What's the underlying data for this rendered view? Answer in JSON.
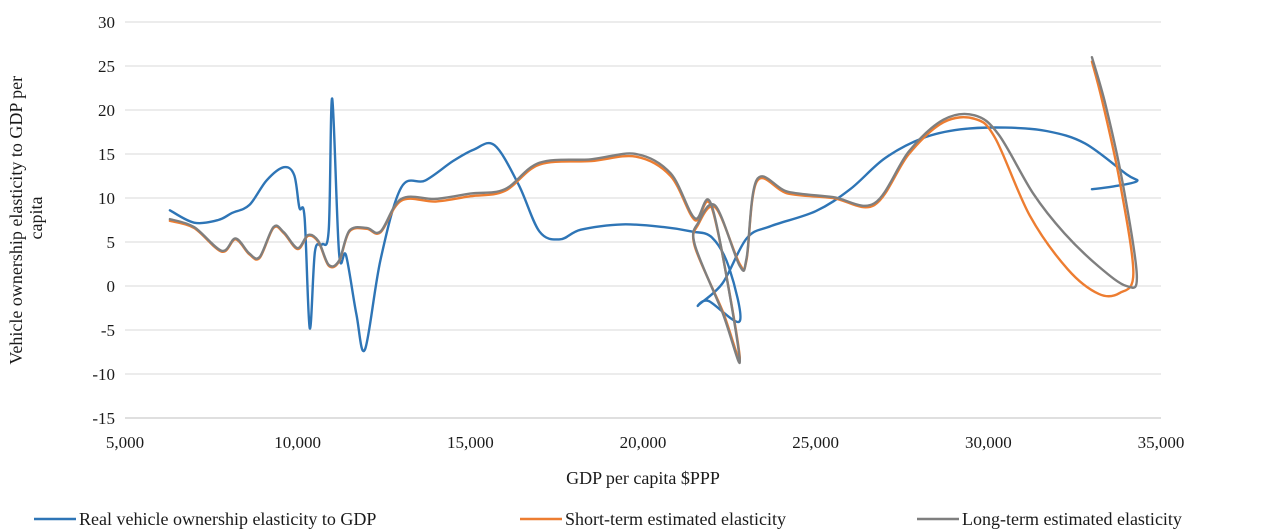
{
  "chart_data": {
    "type": "line",
    "title": "",
    "xlabel": "GDP per capita $PPP",
    "ylabel": "Vehicle ownership elasticity to GDP per capita",
    "ylabel_lines": [
      "Vehicle ownership elasticity to GDP per",
      "capita"
    ],
    "xlim": [
      5000,
      35000
    ],
    "ylim": [
      -15,
      30
    ],
    "x_ticks": [
      5000,
      10000,
      15000,
      20000,
      25000,
      30000,
      35000
    ],
    "x_tick_labels": [
      "5,000",
      "10,000",
      "15,000",
      "20,000",
      "25,000",
      "30,000",
      "35,000"
    ],
    "y_ticks": [
      -15,
      -10,
      -5,
      0,
      5,
      10,
      15,
      20,
      25,
      30
    ],
    "y_tick_labels": [
      "-15",
      "-10",
      "-5",
      "0",
      "5",
      "10",
      "15",
      "20",
      "25",
      "30"
    ],
    "grid": "horizontal",
    "legend_position": "bottom",
    "series": [
      {
        "name": "Real vehicle ownership elasticity to GDP",
        "color": "#2E75B6",
        "points": [
          [
            6300,
            8.6
          ],
          [
            7000,
            7.2
          ],
          [
            7700,
            7.5
          ],
          [
            8100,
            8.3
          ],
          [
            8600,
            9.2
          ],
          [
            9100,
            12.0
          ],
          [
            9600,
            13.5
          ],
          [
            9900,
            12.6
          ],
          [
            10050,
            8.9
          ],
          [
            10200,
            7.8
          ],
          [
            10350,
            -4.8
          ],
          [
            10500,
            3.9
          ],
          [
            10700,
            4.7
          ],
          [
            10900,
            6.4
          ],
          [
            11000,
            21.3
          ],
          [
            11200,
            3.7
          ],
          [
            11400,
            3.5
          ],
          [
            11700,
            -3.2
          ],
          [
            11950,
            -7.2
          ],
          [
            12400,
            3.0
          ],
          [
            13000,
            11.2
          ],
          [
            13700,
            12.0
          ],
          [
            14500,
            14.2
          ],
          [
            15100,
            15.5
          ],
          [
            15700,
            16.0
          ],
          [
            16400,
            11.5
          ],
          [
            17000,
            6.2
          ],
          [
            17600,
            5.3
          ],
          [
            18200,
            6.4
          ],
          [
            19400,
            7.0
          ],
          [
            20600,
            6.7
          ],
          [
            21400,
            6.2
          ],
          [
            22000,
            5.5
          ],
          [
            22500,
            2.0
          ],
          [
            22800,
            -4.0
          ],
          [
            21900,
            -1.7
          ],
          [
            21600,
            -2.2
          ],
          [
            22300,
            0.3
          ],
          [
            23000,
            5.4
          ],
          [
            23700,
            6.8
          ],
          [
            25000,
            8.5
          ],
          [
            26000,
            11.0
          ],
          [
            27000,
            14.5
          ],
          [
            28100,
            16.8
          ],
          [
            29200,
            17.8
          ],
          [
            30500,
            18.0
          ],
          [
            31700,
            17.6
          ],
          [
            32800,
            16.2
          ],
          [
            34000,
            12.7
          ],
          [
            34300,
            11.9
          ],
          [
            33600,
            11.3
          ],
          [
            33000,
            11.0
          ]
        ]
      },
      {
        "name": "Short-term estimated elasticity",
        "color": "#ED7D31",
        "points": [
          [
            6300,
            7.4
          ],
          [
            7000,
            6.6
          ],
          [
            7800,
            3.9
          ],
          [
            8200,
            5.3
          ],
          [
            8600,
            3.6
          ],
          [
            8900,
            3.2
          ],
          [
            9300,
            6.6
          ],
          [
            9600,
            6.0
          ],
          [
            10000,
            4.2
          ],
          [
            10300,
            5.7
          ],
          [
            10600,
            5.0
          ],
          [
            10900,
            2.3
          ],
          [
            11200,
            2.8
          ],
          [
            11500,
            6.2
          ],
          [
            12000,
            6.5
          ],
          [
            12400,
            6.1
          ],
          [
            13000,
            9.7
          ],
          [
            14000,
            9.6
          ],
          [
            15000,
            10.2
          ],
          [
            16000,
            10.8
          ],
          [
            17000,
            13.8
          ],
          [
            18500,
            14.2
          ],
          [
            19800,
            14.7
          ],
          [
            20800,
            12.5
          ],
          [
            21500,
            7.5
          ],
          [
            22000,
            8.8
          ],
          [
            22800,
            -8.0
          ],
          [
            22300,
            -2.8
          ],
          [
            21500,
            4.5
          ],
          [
            21600,
            7.0
          ],
          [
            22100,
            8.9
          ],
          [
            22800,
            2.5
          ],
          [
            23000,
            3.0
          ],
          [
            23300,
            11.9
          ],
          [
            24200,
            10.5
          ],
          [
            25500,
            10.0
          ],
          [
            26700,
            9.2
          ],
          [
            27700,
            15.0
          ],
          [
            28700,
            18.6
          ],
          [
            29600,
            19.0
          ],
          [
            30200,
            16.8
          ],
          [
            31200,
            8.0
          ],
          [
            32300,
            1.9
          ],
          [
            33200,
            -0.9
          ],
          [
            33800,
            -0.8
          ],
          [
            34200,
            1.5
          ],
          [
            33800,
            12.0
          ],
          [
            33300,
            21.0
          ],
          [
            33000,
            25.5
          ]
        ]
      },
      {
        "name": "Long-term estimated elasticity",
        "color": "#7F7F7F",
        "points": [
          [
            6300,
            7.6
          ],
          [
            7000,
            6.7
          ],
          [
            7800,
            4.0
          ],
          [
            8200,
            5.4
          ],
          [
            8600,
            3.7
          ],
          [
            8900,
            3.3
          ],
          [
            9300,
            6.7
          ],
          [
            9600,
            6.1
          ],
          [
            10000,
            4.3
          ],
          [
            10300,
            5.8
          ],
          [
            10600,
            5.1
          ],
          [
            10900,
            2.4
          ],
          [
            11200,
            2.9
          ],
          [
            11500,
            6.3
          ],
          [
            12000,
            6.6
          ],
          [
            12400,
            6.2
          ],
          [
            13000,
            9.9
          ],
          [
            14000,
            9.9
          ],
          [
            15000,
            10.5
          ],
          [
            16000,
            11.0
          ],
          [
            17000,
            14.0
          ],
          [
            18500,
            14.4
          ],
          [
            19800,
            15.0
          ],
          [
            20800,
            12.8
          ],
          [
            21500,
            7.7
          ],
          [
            22000,
            9.0
          ],
          [
            22800,
            -8.3
          ],
          [
            22300,
            -3.0
          ],
          [
            21500,
            4.7
          ],
          [
            21600,
            7.2
          ],
          [
            22100,
            9.1
          ],
          [
            22800,
            2.3
          ],
          [
            23000,
            3.2
          ],
          [
            23300,
            12.1
          ],
          [
            24200,
            10.7
          ],
          [
            25500,
            10.1
          ],
          [
            26700,
            9.4
          ],
          [
            27700,
            15.3
          ],
          [
            28700,
            18.9
          ],
          [
            29600,
            19.4
          ],
          [
            30300,
            17.2
          ],
          [
            31300,
            10.5
          ],
          [
            32200,
            6.0
          ],
          [
            33200,
            2.2
          ],
          [
            34000,
            0.0
          ],
          [
            34300,
            1.2
          ],
          [
            33900,
            11.5
          ],
          [
            33400,
            20.5
          ],
          [
            33000,
            26.0
          ]
        ]
      }
    ]
  }
}
